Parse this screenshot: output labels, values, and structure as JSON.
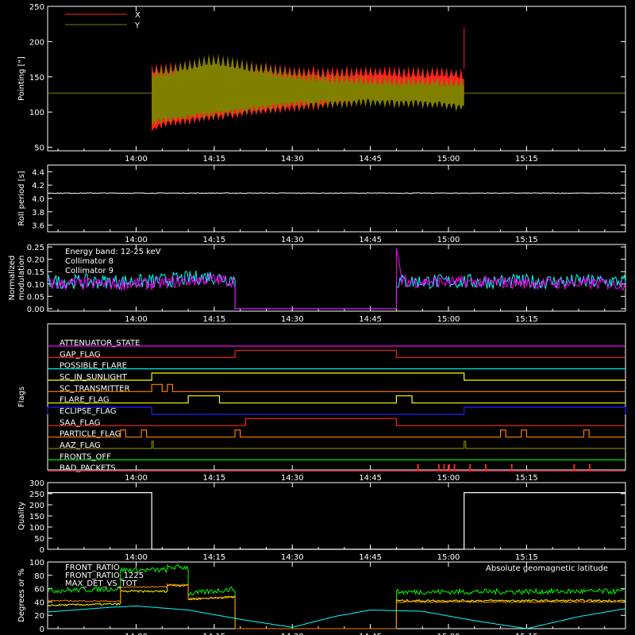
{
  "colors": {
    "background": "#000000",
    "axis": "#ffffff",
    "x": "#ff2020",
    "y": "#808000",
    "collimator8": "#00ffff",
    "collimator9": "#ff00ff",
    "energy_band": "#ffffff",
    "quality": "#ffffff",
    "front_ratio": "#ffff00",
    "front_ratio_1225": "#00ff00",
    "max_det": "#ff8000",
    "geomag": "#00ffff"
  },
  "time_axis": {
    "range": [
      "13:43",
      "15:34"
    ],
    "ticks": [
      "14:00",
      "14:15",
      "14:30",
      "14:45",
      "15:00",
      "15:15"
    ]
  },
  "chart_data": [
    {
      "type": "area",
      "name": "pointing",
      "ylabel": "Pointing [\"]",
      "ylim": [
        45,
        250
      ],
      "yticks": [
        "50",
        "100",
        "150",
        "200",
        "250"
      ],
      "legend": [
        "X",
        "Y"
      ],
      "legend_position": "top-left",
      "reference_line": 127,
      "series": [
        {
          "name": "X",
          "x": [
            "14:03",
            "14:05",
            "14:15",
            "14:30",
            "14:45",
            "15:00",
            "15:03"
          ],
          "low": [
            70,
            78,
            88,
            100,
            110,
            112,
            110
          ],
          "high": [
            170,
            168,
            180,
            165,
            165,
            163,
            162
          ],
          "spike": {
            "x": "15:03",
            "value": 220
          }
        },
        {
          "name": "Y",
          "x": [
            "14:03",
            "14:05",
            "14:15",
            "14:30",
            "14:45",
            "15:00",
            "15:03"
          ],
          "low": [
            78,
            84,
            92,
            105,
            108,
            104,
            100
          ],
          "high": [
            162,
            165,
            183,
            160,
            152,
            150,
            150
          ]
        }
      ]
    },
    {
      "type": "line",
      "name": "roll-period",
      "ylabel": "Roll period [s]",
      "ylim": [
        3.5,
        4.5
      ],
      "yticks": [
        "3.6",
        "3.8",
        "4.0",
        "4.2",
        "4.4"
      ],
      "series": [
        {
          "name": "",
          "x": [
            "13:43",
            "15:34"
          ],
          "values": [
            4.08,
            4.08
          ]
        }
      ]
    },
    {
      "type": "line",
      "name": "modulation",
      "ylabel": "Normalized modulation",
      "ylim": [
        -0.01,
        0.26
      ],
      "yticks": [
        "0.00",
        "0.05",
        "0.10",
        "0.15",
        "0.20",
        "0.25"
      ],
      "legend": [
        "Energy band: 12-25 keV",
        "Collimator 8",
        "Collimator 9"
      ],
      "series": [
        {
          "name": "Collimator 8",
          "x": [
            "13:43",
            "14:03",
            "14:14",
            "14:19",
            "14:19",
            "14:50",
            "14:50",
            "15:34"
          ],
          "values": [
            0.11,
            0.11,
            0.13,
            0.12,
            0.0,
            0.0,
            0.11,
            0.11
          ]
        },
        {
          "name": "Collimator 9",
          "x": [
            "13:43",
            "14:03",
            "14:14",
            "14:19",
            "14:19",
            "14:50",
            "14:50",
            "14:51",
            "15:34"
          ],
          "values": [
            0.1,
            0.1,
            0.12,
            0.11,
            0.0,
            0.0,
            0.24,
            0.11,
            0.1
          ]
        }
      ]
    },
    {
      "type": "line",
      "name": "flags",
      "ylabel": "Flags",
      "flags": [
        {
          "label": "ATTENUATOR_STATE",
          "color": "#ff00ff",
          "segments": []
        },
        {
          "label": "GAP_FLAG",
          "color": "#ff2020",
          "segments": [
            [
              "14:19",
              "14:50"
            ]
          ]
        },
        {
          "label": "POSSIBLE_FLARE",
          "color": "#00ffff",
          "segments": []
        },
        {
          "label": "SC_IN_SUNLIGHT",
          "color": "#ffff00",
          "segments": [
            [
              "14:03",
              "15:03"
            ]
          ]
        },
        {
          "label": "SC_TRANSMITTER",
          "color": "#ff8000",
          "segments": [
            [
              "14:03",
              "14:05"
            ],
            [
              "14:06",
              "14:07"
            ]
          ]
        },
        {
          "label": "FLARE_FLAG",
          "color": "#ffff00",
          "segments": [
            [
              "14:10",
              "14:16"
            ],
            [
              "14:50",
              "14:53"
            ]
          ]
        },
        {
          "label": "ECLIPSE_FLAG",
          "color": "#2020ff",
          "segments": [
            [
              "13:43",
              "14:03"
            ],
            [
              "15:03",
              "15:34"
            ]
          ]
        },
        {
          "label": "SAA_FLAG",
          "color": "#ff2020",
          "segments": [
            [
              "14:21",
              "14:50"
            ]
          ]
        },
        {
          "label": "PARTICLE_FLAG",
          "color": "#ff8000",
          "segments": [
            [
              "13:57",
              "13:58"
            ],
            [
              "14:01",
              "14:02"
            ],
            [
              "14:19",
              "14:20"
            ],
            [
              "15:10",
              "15:11"
            ],
            [
              "15:14",
              "15:15"
            ],
            [
              "15:26",
              "15:27"
            ]
          ]
        },
        {
          "label": "AAZ_FLAG",
          "color": "#808000",
          "segments": [
            [
              "14:03",
              "14:03"
            ],
            [
              "15:03",
              "15:03"
            ]
          ]
        },
        {
          "label": "FRONTS_OFF",
          "color": "#00ff00",
          "segments": []
        },
        {
          "label": "BAD_PACKETS",
          "color": "#ff2020",
          "ticks": [
            "14:54",
            "14:58",
            "14:59",
            "15:00",
            "15:01",
            "15:04",
            "15:07",
            "15:12",
            "15:24",
            "15:27"
          ]
        }
      ]
    },
    {
      "type": "line",
      "name": "quality",
      "ylabel": "Quality",
      "ylim": [
        0,
        300
      ],
      "yticks": [
        "0",
        "50",
        "100",
        "150",
        "200",
        "250",
        "300"
      ],
      "series": [
        {
          "name": "",
          "x": [
            "13:43",
            "14:03",
            "14:03",
            "15:03",
            "15:03",
            "15:34"
          ],
          "values": [
            255,
            255,
            0,
            0,
            255,
            255
          ]
        }
      ]
    },
    {
      "type": "line",
      "name": "ratios",
      "ylabel": "Degrees or %",
      "ylim": [
        0,
        100
      ],
      "yticks": [
        "0",
        "20",
        "40",
        "60",
        "80",
        "100"
      ],
      "legend": [
        "FRONT_RATIO",
        "FRONT_RATIO_1225",
        "MAX_DET_VS_TOT",
        "Absolute geomagnetic latitude"
      ],
      "series": [
        {
          "name": "FRONT_RATIO_1225",
          "x": [
            "13:43",
            "13:57",
            "13:57",
            "14:06",
            "14:06",
            "14:10",
            "14:10",
            "14:19",
            "14:19",
            "14:50",
            "14:50",
            "15:34"
          ],
          "values": [
            57,
            60,
            88,
            88,
            92,
            92,
            52,
            60,
            0,
            0,
            55,
            56
          ]
        },
        {
          "name": "FRONT_RATIO",
          "x": [
            "13:43",
            "13:57",
            "13:57",
            "14:06",
            "14:06",
            "14:10",
            "14:10",
            "14:19",
            "14:19",
            "14:50",
            "14:50",
            "15:34"
          ],
          "values": [
            35,
            37,
            56,
            56,
            65,
            65,
            44,
            48,
            0,
            0,
            42,
            42
          ]
        },
        {
          "name": "MAX_DET_VS_TOT",
          "x": [
            "13:43",
            "13:57",
            "13:57",
            "14:06",
            "14:06",
            "14:10",
            "14:10",
            "14:19",
            "14:19",
            "14:50",
            "14:50",
            "15:34"
          ],
          "values": [
            42,
            41,
            62,
            63,
            66,
            66,
            45,
            47,
            0,
            0,
            40,
            40
          ]
        },
        {
          "name": "Absolute geomagnetic latitude",
          "x": [
            "13:43",
            "13:55",
            "14:00",
            "14:10",
            "14:20",
            "14:30",
            "14:38",
            "14:45",
            "14:55",
            "15:05",
            "15:15",
            "15:25",
            "15:34"
          ],
          "values": [
            25,
            32,
            34,
            28,
            14,
            2,
            18,
            28,
            26,
            12,
            0,
            18,
            30
          ]
        }
      ]
    }
  ]
}
